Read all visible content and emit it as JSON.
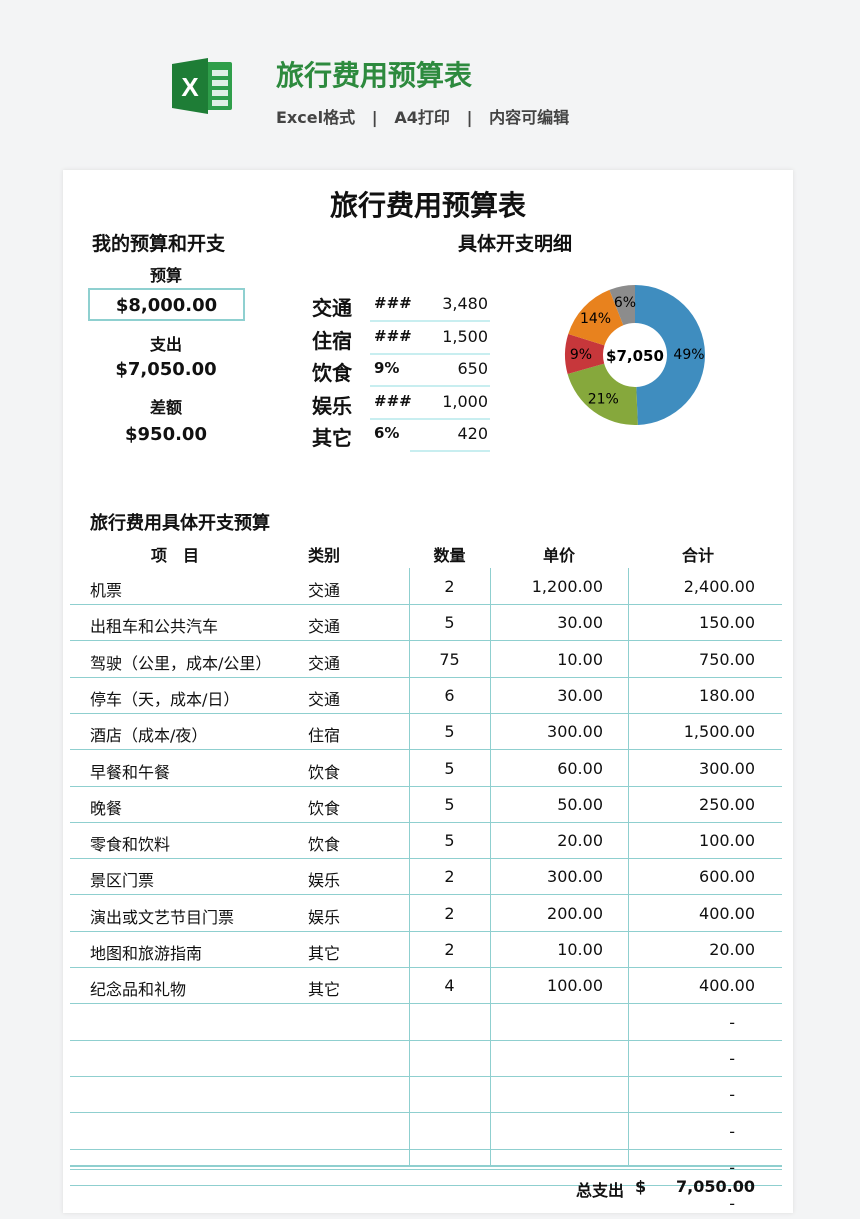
{
  "header": {
    "title": "旅行费用预算表",
    "subtitle": "Excel格式   |   A4打印   |   内容可编辑",
    "logo": "excel-icon"
  },
  "sheet": {
    "title": "旅行费用预算表",
    "summary": {
      "heading": "我的预算和开支",
      "budget_label": "预算",
      "budget": "$8,000.00",
      "expense_label": "支出",
      "expense": "$7,050.00",
      "diff_label": "差额",
      "diff": "$950.00"
    },
    "breakdown": {
      "heading": "具体开支明细",
      "items": [
        {
          "cat": "交通",
          "pct": "###",
          "amount": "3,480"
        },
        {
          "cat": "住宿",
          "pct": "###",
          "amount": "1,500"
        },
        {
          "cat": "饮食",
          "pct": "9%",
          "amount": "650"
        },
        {
          "cat": "娱乐",
          "pct": "###",
          "amount": "1,000"
        },
        {
          "cat": "其它",
          "pct": "6%",
          "amount": "420"
        }
      ]
    },
    "chart_data": {
      "type": "pie",
      "donut": true,
      "center_label": "$7,050",
      "categories": [
        "交通",
        "住宿",
        "饮食",
        "娱乐",
        "其它"
      ],
      "values": [
        3480,
        1500,
        650,
        1000,
        420
      ],
      "labels": [
        "49%",
        "21%",
        "9%",
        "14%",
        "6%"
      ],
      "colors": [
        "#3f8dbf",
        "#86a83c",
        "#c7373b",
        "#e8821e",
        "#8c8c8c"
      ]
    },
    "table": {
      "heading": "旅行费用具体开支预算",
      "columns": [
        "项　目",
        "类别",
        "数量",
        "单价",
        "合计"
      ],
      "rows": [
        [
          "机票",
          "交通",
          "2",
          "1,200.00",
          "2,400.00"
        ],
        [
          "出租车和公共汽车",
          "交通",
          "5",
          "30.00",
          "150.00"
        ],
        [
          "驾驶（公里，成本/公里）",
          "交通",
          "75",
          "10.00",
          "750.00"
        ],
        [
          "停车（天，成本/日）",
          "交通",
          "6",
          "30.00",
          "180.00"
        ],
        [
          "酒店（成本/夜）",
          "住宿",
          "5",
          "300.00",
          "1,500.00"
        ],
        [
          "早餐和午餐",
          "饮食",
          "5",
          "60.00",
          "300.00"
        ],
        [
          "晚餐",
          "饮食",
          "5",
          "50.00",
          "250.00"
        ],
        [
          "零食和饮料",
          "饮食",
          "5",
          "20.00",
          "100.00"
        ],
        [
          "景区门票",
          "娱乐",
          "2",
          "300.00",
          "600.00"
        ],
        [
          "演出或文艺节目门票",
          "娱乐",
          "2",
          "200.00",
          "400.00"
        ],
        [
          "地图和旅游指南",
          "其它",
          "2",
          "10.00",
          "20.00"
        ],
        [
          "纪念品和礼物",
          "其它",
          "4",
          "100.00",
          "400.00"
        ],
        [
          "",
          "",
          "",
          "",
          "-"
        ],
        [
          "",
          "",
          "",
          "",
          "-"
        ],
        [
          "",
          "",
          "",
          "",
          "-"
        ],
        [
          "",
          "",
          "",
          "",
          "-"
        ],
        [
          "",
          "",
          "",
          "",
          "-"
        ],
        [
          "",
          "",
          "",
          "",
          "-"
        ]
      ],
      "total_label": "总支出",
      "currency": "$",
      "total": "7,050.00"
    }
  }
}
